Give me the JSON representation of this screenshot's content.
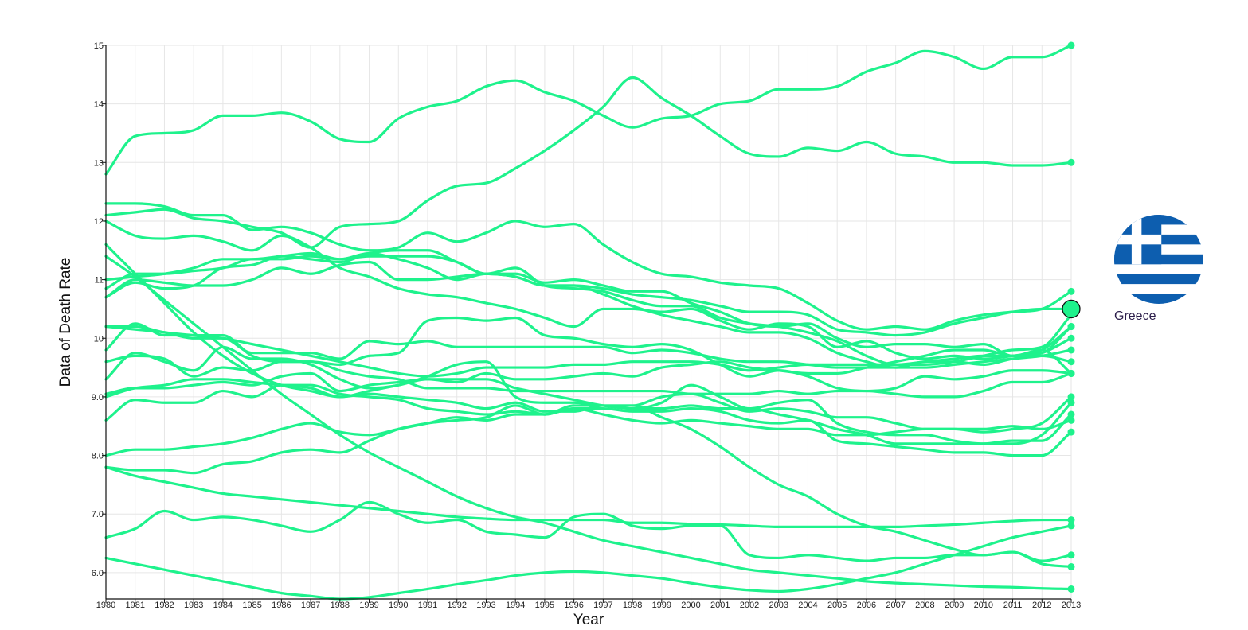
{
  "colors": {
    "series": "#1ef28c",
    "axis": "#111111",
    "grid": "#e6e6e6",
    "flag_blue": "#0d5eaf",
    "flag_white": "#ffffff"
  },
  "legend": {
    "label": "Greece",
    "icon": "greece-flag-icon",
    "highlight_value": 10.5
  },
  "chart_data": {
    "type": "line",
    "xlabel": "Year",
    "ylabel": "Data of Death Rate",
    "x": [
      1980,
      1981,
      1982,
      1983,
      1984,
      1985,
      1986,
      1987,
      1988,
      1989,
      1990,
      1991,
      1992,
      1993,
      1994,
      1995,
      1996,
      1997,
      1998,
      1999,
      2000,
      2001,
      2002,
      2003,
      2004,
      2005,
      2006,
      2007,
      2008,
      2009,
      2010,
      2011,
      2012,
      2013
    ],
    "xlim": [
      1980,
      2013
    ],
    "ylim": [
      5.55,
      15
    ],
    "y_ticks": [
      "6.0",
      "7.0",
      "8.0",
      "9.0",
      "10",
      "11",
      "12",
      "13",
      "14",
      "15"
    ],
    "grid": true,
    "legend_position": "right",
    "series": [
      {
        "values": [
          12.8,
          13.45,
          13.5,
          13.55,
          13.8,
          13.8,
          13.85,
          13.7,
          13.4,
          13.35,
          13.75,
          13.95,
          14.05,
          14.3,
          14.4,
          14.2,
          14.05,
          13.8,
          13.6,
          13.75,
          13.8,
          14.0,
          14.05,
          14.25,
          14.25,
          14.3,
          14.55,
          14.7,
          14.9,
          14.8,
          14.6,
          14.8,
          14.8,
          15.0
        ]
      },
      {
        "values": [
          12.3,
          12.3,
          12.25,
          12.1,
          12.1,
          11.85,
          11.9,
          11.8,
          11.6,
          11.5,
          11.55,
          11.8,
          11.65,
          11.8,
          12.0,
          11.9,
          11.95,
          11.6,
          11.3,
          11.1,
          11.05,
          10.95,
          10.9,
          10.85,
          10.6,
          10.3,
          10.15,
          10.2,
          10.15,
          10.3,
          10.4,
          10.45,
          10.5,
          10.8
        ]
      },
      {
        "values": [
          12.1,
          12.15,
          12.2,
          12.05,
          12.0,
          11.9,
          11.8,
          11.55,
          11.9,
          11.95,
          12.0,
          12.35,
          12.6,
          12.65,
          12.9,
          13.2,
          13.55,
          13.95,
          14.45,
          14.1,
          13.8,
          13.45,
          13.15,
          13.1,
          13.25,
          13.2,
          13.35,
          13.15,
          13.1,
          13.0,
          13.0,
          12.95,
          12.95,
          13.0
        ]
      },
      {
        "values": [
          12.0,
          11.75,
          11.7,
          11.75,
          11.65,
          11.5,
          11.75,
          11.55,
          11.2,
          11.05,
          10.85,
          10.75,
          10.7,
          10.6,
          10.5,
          10.35,
          10.2,
          10.5,
          10.5,
          10.45,
          10.5,
          10.3,
          10.15,
          10.25,
          10.2,
          9.85,
          9.95,
          9.75,
          9.65,
          9.7,
          9.65,
          9.7,
          9.8,
          10.2
        ]
      },
      {
        "values": [
          11.6,
          11.1,
          10.6,
          10.1,
          9.7,
          9.4,
          9.2,
          9.1,
          9.0,
          9.1,
          9.2,
          9.3,
          9.25,
          9.4,
          9.3,
          9.3,
          9.35,
          9.4,
          9.35,
          9.5,
          9.55,
          9.6,
          9.5,
          9.45,
          9.4,
          9.4,
          9.5,
          9.6,
          9.7,
          9.8,
          9.8,
          9.7,
          9.8,
          9.4
        ]
      },
      {
        "values": [
          11.0,
          11.05,
          11.1,
          11.2,
          11.35,
          11.35,
          11.4,
          11.45,
          11.35,
          11.4,
          11.4,
          11.4,
          11.3,
          11.1,
          11.1,
          10.95,
          11.0,
          10.9,
          10.8,
          10.8,
          10.6,
          10.45,
          10.25,
          10.2,
          10.25,
          10.0,
          9.85,
          9.9,
          9.9,
          9.85,
          9.9,
          9.7,
          9.75,
          10.2
        ]
      },
      {
        "values": [
          10.7,
          10.95,
          10.85,
          10.9,
          11.2,
          11.25,
          11.4,
          11.35,
          11.3,
          11.45,
          11.5,
          11.5,
          11.3,
          11.1,
          11.2,
          10.9,
          10.85,
          10.8,
          10.65,
          10.55,
          10.55,
          10.35,
          10.25,
          10.2,
          10.1,
          9.95,
          9.7,
          9.55,
          9.55,
          9.6,
          9.7,
          9.8,
          9.85,
          10.4
        ]
      },
      {
        "values": [
          10.7,
          11.0,
          10.95,
          10.9,
          10.9,
          11.0,
          11.2,
          11.1,
          11.25,
          11.3,
          11.0,
          11.0,
          11.05,
          11.1,
          11.05,
          10.9,
          10.9,
          10.75,
          10.55,
          10.4,
          10.3,
          10.2,
          10.1,
          10.1,
          10.0,
          9.75,
          9.6,
          9.5,
          9.5,
          9.55,
          9.6,
          9.65,
          9.7,
          9.8
        ]
      },
      {
        "values": [
          10.2,
          10.2,
          10.1,
          10.05,
          10.0,
          9.9,
          9.8,
          9.7,
          9.6,
          9.5,
          9.4,
          9.35,
          9.4,
          9.5,
          9.5,
          9.5,
          9.55,
          9.55,
          9.6,
          9.6,
          9.6,
          9.55,
          9.45,
          9.5,
          9.55,
          9.55,
          9.55,
          9.55,
          9.6,
          9.65,
          9.7,
          9.7,
          9.75,
          10.0
        ]
      },
      {
        "values": [
          10.2,
          10.15,
          10.1,
          10.0,
          10.0,
          9.75,
          9.75,
          9.75,
          9.65,
          9.95,
          9.9,
          9.95,
          9.85,
          9.85,
          9.85,
          9.85,
          9.85,
          9.85,
          9.75,
          9.8,
          9.75,
          9.65,
          9.6,
          9.6,
          9.55,
          9.5,
          9.5,
          9.5,
          9.6,
          9.6,
          9.55,
          9.65,
          9.7,
          9.6
        ]
      },
      {
        "values": [
          9.8,
          10.25,
          10.05,
          10.05,
          10.05,
          9.7,
          9.6,
          9.6,
          9.55,
          9.7,
          9.75,
          10.3,
          10.35,
          10.3,
          10.35,
          10.05,
          10.0,
          9.9,
          9.85,
          9.9,
          9.8,
          9.55,
          9.35,
          9.45,
          9.35,
          9.15,
          9.1,
          9.15,
          9.35,
          9.3,
          9.35,
          9.45,
          9.45,
          9.4
        ]
      },
      {
        "values": [
          9.6,
          9.7,
          9.65,
          9.35,
          9.5,
          9.45,
          9.6,
          9.6,
          9.45,
          9.35,
          9.3,
          9.15,
          9.15,
          9.15,
          9.1,
          9.1,
          9.1,
          9.1,
          9.1,
          9.1,
          9.05,
          9.05,
          9.05,
          9.1,
          9.05,
          9.1,
          9.1,
          9.05,
          9.0,
          9.0,
          9.1,
          9.25,
          9.25,
          9.4
        ]
      },
      {
        "values": [
          9.3,
          9.75,
          9.6,
          9.45,
          9.85,
          9.65,
          9.65,
          9.55,
          9.3,
          9.15,
          9.2,
          9.35,
          9.55,
          9.6,
          9.0,
          8.9,
          8.9,
          8.85,
          8.85,
          9.0,
          9.05,
          8.9,
          8.75,
          8.8,
          8.75,
          8.65,
          8.65,
          8.55,
          8.45,
          8.45,
          8.4,
          8.45,
          8.55,
          9.0
        ]
      },
      {
        "values": [
          9.05,
          9.15,
          9.15,
          9.2,
          9.25,
          9.2,
          9.35,
          9.4,
          9.1,
          9.2,
          9.25,
          9.3,
          9.3,
          9.3,
          9.15,
          9.05,
          8.95,
          8.85,
          8.8,
          8.9,
          9.2,
          9.0,
          8.8,
          8.9,
          8.95,
          8.55,
          8.4,
          8.35,
          8.35,
          8.25,
          8.2,
          8.2,
          8.35,
          8.9
        ]
      },
      {
        "values": [
          9.0,
          9.15,
          9.2,
          9.3,
          9.3,
          9.25,
          9.2,
          9.15,
          9.0,
          9.05,
          9.0,
          8.95,
          8.9,
          8.8,
          8.9,
          8.75,
          8.75,
          8.85,
          8.8,
          8.8,
          8.85,
          8.8,
          8.8,
          8.7,
          8.6,
          8.45,
          8.35,
          8.2,
          8.2,
          8.2,
          8.2,
          8.25,
          8.25,
          8.7
        ]
      },
      {
        "values": [
          8.6,
          8.95,
          8.9,
          8.9,
          9.1,
          9.0,
          9.2,
          9.2,
          9.05,
          9.0,
          8.95,
          8.8,
          8.75,
          8.7,
          8.75,
          8.7,
          8.8,
          8.7,
          8.6,
          8.55,
          8.6,
          8.55,
          8.5,
          8.45,
          8.45,
          8.35,
          8.35,
          8.4,
          8.45,
          8.45,
          8.45,
          8.5,
          8.45,
          8.6
        ]
      },
      {
        "values": [
          8.0,
          8.1,
          8.1,
          8.15,
          8.2,
          8.3,
          8.45,
          8.55,
          8.4,
          8.35,
          8.45,
          8.55,
          8.65,
          8.6,
          8.7,
          8.7,
          8.8,
          8.8,
          8.75,
          8.75,
          8.8,
          8.75,
          8.6,
          8.55,
          8.6,
          8.25,
          8.2,
          8.15,
          8.1,
          8.05,
          8.05,
          8.0,
          8.0,
          8.4
        ]
      },
      {
        "values": [
          7.8,
          7.75,
          7.75,
          7.7,
          7.85,
          7.9,
          8.05,
          8.1,
          8.05,
          8.25,
          8.45,
          8.55,
          8.6,
          8.65,
          8.85,
          8.7,
          8.85,
          8.85,
          8.85,
          8.65,
          8.45,
          8.15,
          7.8,
          7.5,
          7.3,
          7.0,
          6.8,
          6.7,
          6.55,
          6.4,
          6.3,
          6.35,
          6.2,
          6.3
        ]
      },
      {
        "values": [
          7.8,
          7.65,
          7.55,
          7.45,
          7.35,
          7.3,
          7.25,
          7.2,
          7.15,
          7.1,
          7.05,
          7.0,
          6.95,
          6.92,
          6.9,
          6.9,
          6.9,
          6.9,
          6.85,
          6.85,
          6.83,
          6.82,
          6.8,
          6.78,
          6.78,
          6.78,
          6.78,
          6.78,
          6.8,
          6.82,
          6.85,
          6.88,
          6.9,
          6.9
        ]
      },
      {
        "values": [
          6.6,
          6.75,
          7.05,
          6.9,
          6.95,
          6.9,
          6.8,
          6.7,
          6.9,
          7.2,
          7.0,
          6.85,
          6.9,
          6.7,
          6.65,
          6.6,
          6.95,
          7.0,
          6.8,
          6.75,
          6.8,
          6.8,
          6.3,
          6.25,
          6.3,
          6.25,
          6.2,
          6.25,
          6.25,
          6.3,
          6.3,
          6.35,
          6.15,
          6.1
        ]
      },
      {
        "values": [
          6.25,
          6.15,
          6.05,
          5.95,
          5.85,
          5.75,
          5.65,
          5.6,
          5.55,
          5.58,
          5.65,
          5.72,
          5.8,
          5.87,
          5.95,
          6.0,
          6.02,
          6.0,
          5.95,
          5.9,
          5.82,
          5.75,
          5.7,
          5.68,
          5.72,
          5.8,
          5.9,
          6.0,
          6.15,
          6.3,
          6.45,
          6.6,
          6.7,
          6.8
        ]
      },
      {
        "values": [
          11.4,
          11.05,
          10.65,
          10.25,
          9.85,
          9.45,
          9.05,
          8.7,
          8.35,
          8.05,
          7.8,
          7.55,
          7.3,
          7.1,
          6.95,
          6.85,
          6.7,
          6.55,
          6.45,
          6.35,
          6.25,
          6.15,
          6.05,
          6.0,
          5.95,
          5.9,
          5.85,
          5.82,
          5.8,
          5.78,
          5.76,
          5.75,
          5.73,
          5.72
        ]
      },
      {
        "values": [
          10.85,
          11.1,
          11.1,
          11.15,
          11.2,
          11.35,
          11.35,
          11.4,
          11.35,
          11.45,
          11.35,
          11.2,
          11.0,
          11.1,
          11.05,
          10.9,
          10.9,
          10.85,
          10.75,
          10.7,
          10.65,
          10.55,
          10.45,
          10.45,
          10.4,
          10.15,
          10.1,
          10.05,
          10.1,
          10.25,
          10.35,
          10.45,
          10.5,
          10.5
        ]
      }
    ]
  }
}
